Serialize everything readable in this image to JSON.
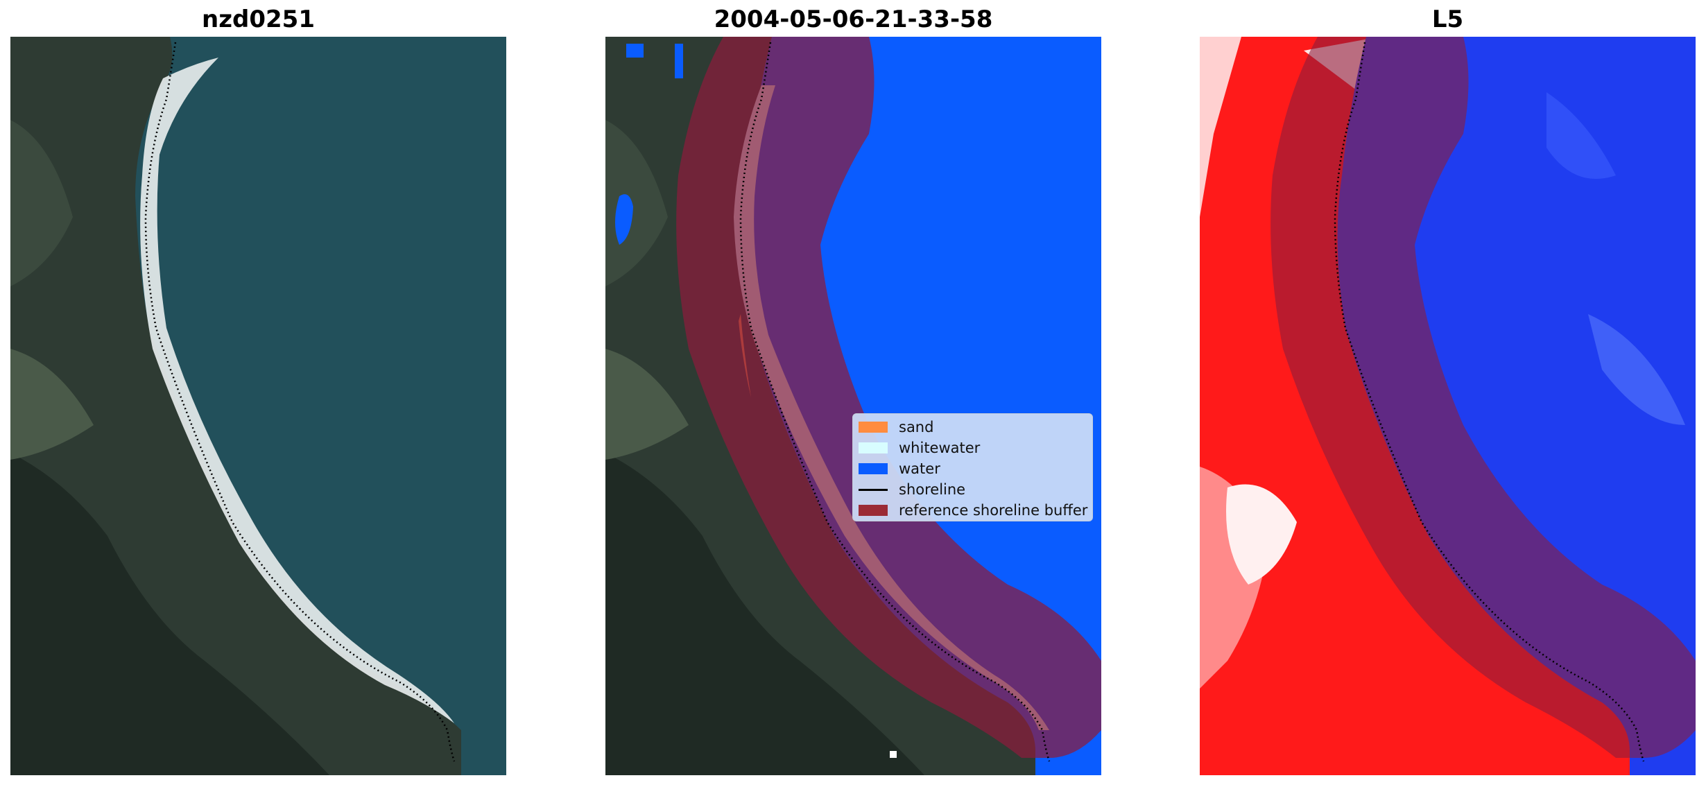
{
  "panels": [
    {
      "title": "nzd0251"
    },
    {
      "title": "2004-05-06-21-33-58"
    },
    {
      "title": "L5"
    }
  ],
  "legend": {
    "items": [
      {
        "label": "sand",
        "color": "#ff8c3f"
      },
      {
        "label": "whitewater",
        "color": "#d8fdff"
      },
      {
        "label": "water",
        "color": "#0a5cff"
      },
      {
        "label": "shoreline",
        "color": "#000000"
      },
      {
        "label": "reference shoreline buffer",
        "color": "#9b2b36"
      }
    ]
  },
  "colors": {
    "land": "#2d3a32",
    "sea": "#23505c",
    "buffer": "#8c1c3c",
    "land_class": "#ff1a1a",
    "water_class": "#1f3df0"
  }
}
